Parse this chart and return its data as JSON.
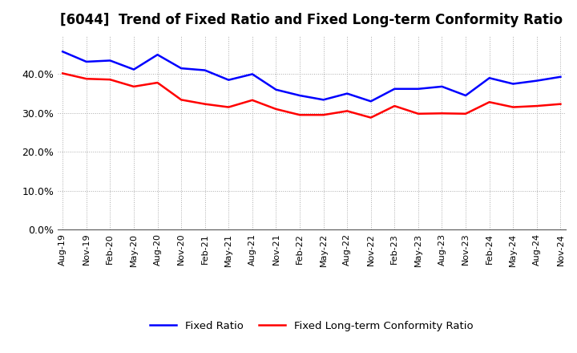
{
  "title": "[6044]  Trend of Fixed Ratio and Fixed Long-term Conformity Ratio",
  "x_labels": [
    "Aug-19",
    "Nov-19",
    "Feb-20",
    "May-20",
    "Aug-20",
    "Nov-20",
    "Feb-21",
    "May-21",
    "Aug-21",
    "Nov-21",
    "Feb-22",
    "May-22",
    "Aug-22",
    "Nov-22",
    "Feb-23",
    "May-23",
    "Aug-23",
    "Nov-23",
    "Feb-24",
    "May-24",
    "Aug-24",
    "Nov-24"
  ],
  "fixed_ratio": [
    0.458,
    0.432,
    0.435,
    0.412,
    0.45,
    0.415,
    0.41,
    0.385,
    0.4,
    0.36,
    0.345,
    0.334,
    0.35,
    0.33,
    0.362,
    0.362,
    0.368,
    0.345,
    0.39,
    0.375,
    0.383,
    0.393
  ],
  "fixed_lt_conformity": [
    0.402,
    0.388,
    0.386,
    0.368,
    0.378,
    0.334,
    0.323,
    0.315,
    0.333,
    0.31,
    0.295,
    0.295,
    0.305,
    0.288,
    0.318,
    0.298,
    0.299,
    0.298,
    0.328,
    0.315,
    0.318,
    0.323
  ],
  "fixed_ratio_color": "#0000FF",
  "fixed_lt_color": "#FF0000",
  "ylim": [
    0.0,
    0.5
  ],
  "yticks": [
    0.0,
    0.1,
    0.2,
    0.3,
    0.4
  ],
  "background_color": "#FFFFFF",
  "plot_bg_color": "#FFFFFF",
  "grid_color": "#AAAAAA",
  "legend_fixed_ratio": "Fixed Ratio",
  "legend_fixed_lt": "Fixed Long-term Conformity Ratio",
  "line_width": 1.8,
  "title_fontsize": 12
}
